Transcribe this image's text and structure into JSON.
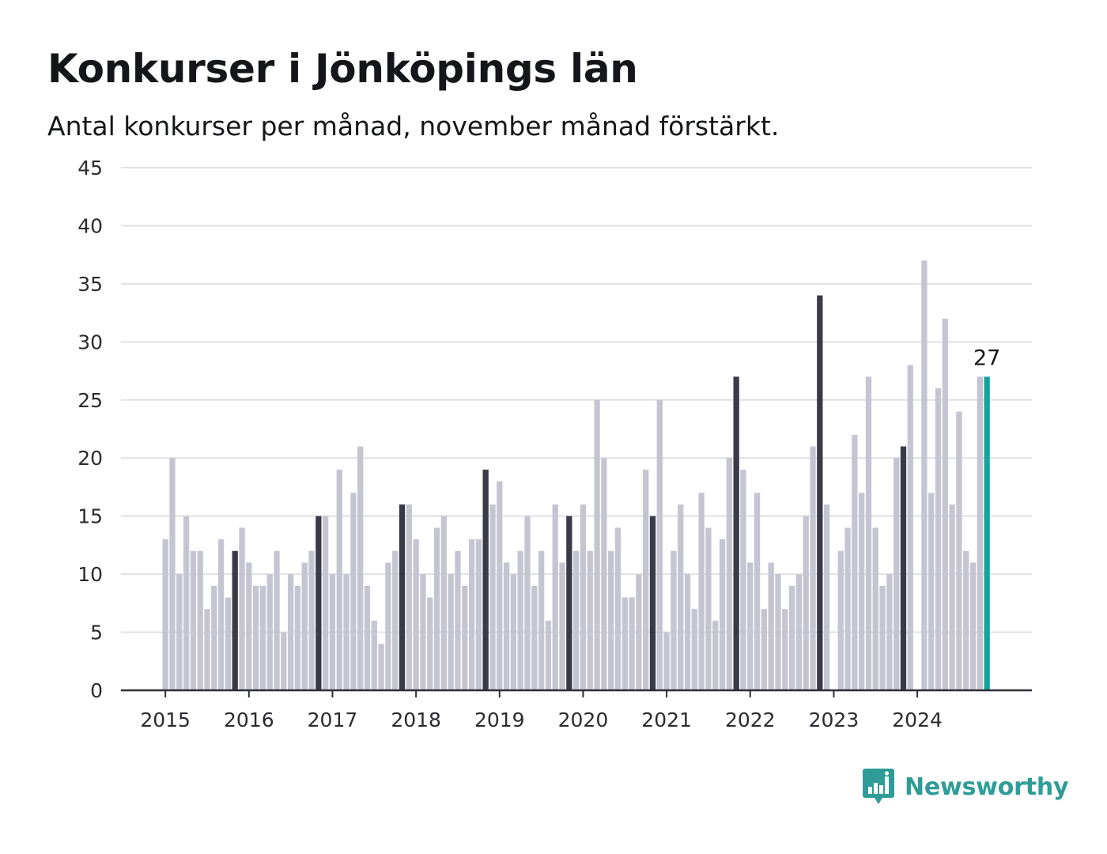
{
  "title": "Konkurser i Jönköpings län",
  "subtitle": "Antal konkurser per månad, november månad förstärkt.",
  "brand": {
    "name": "Newsworthy",
    "icon": "newsworthy-logo-icon"
  },
  "colors": {
    "bar_default": "#c5c5d2",
    "bar_highlight_november": "#3a3a48",
    "bar_latest": "#16a39b",
    "gridline": "#e0e0e5",
    "baseline": "#2e2e38",
    "brand": "#2f9c97"
  },
  "chart_data": {
    "type": "bar",
    "title": "Konkurser i Jönköpings län",
    "subtitle": "Antal konkurser per månad, november månad förstärkt.",
    "xlabel": "",
    "ylabel": "",
    "ylim": [
      0,
      45
    ],
    "yticks": [
      0,
      5,
      10,
      15,
      20,
      25,
      30,
      35,
      40,
      45
    ],
    "xtick_labels": [
      "2015",
      "2016",
      "2017",
      "2018",
      "2019",
      "2020",
      "2021",
      "2022",
      "2023",
      "2024"
    ],
    "grid": true,
    "legend": "none",
    "start": "2015-01",
    "end": "2024-11",
    "highlight_month": 11,
    "latest_label": "27",
    "values": [
      13,
      20,
      10,
      15,
      12,
      12,
      7,
      9,
      13,
      8,
      12,
      14,
      11,
      9,
      9,
      10,
      12,
      5,
      10,
      9,
      11,
      12,
      15,
      15,
      10,
      19,
      10,
      17,
      21,
      9,
      6,
      4,
      11,
      12,
      16,
      16,
      13,
      10,
      8,
      14,
      15,
      10,
      12,
      9,
      13,
      13,
      19,
      16,
      18,
      11,
      10,
      12,
      15,
      9,
      12,
      6,
      16,
      11,
      15,
      12,
      16,
      12,
      25,
      20,
      12,
      14,
      8,
      8,
      10,
      19,
      15,
      25,
      5,
      12,
      16,
      10,
      7,
      17,
      14,
      6,
      13,
      20,
      27,
      19,
      11,
      17,
      7,
      11,
      10,
      7,
      9,
      10,
      15,
      21,
      34,
      16,
      0,
      12,
      14,
      22,
      17,
      27,
      14,
      9,
      10,
      20,
      21,
      28,
      0,
      37,
      17,
      26,
      32,
      16,
      24,
      12,
      11,
      27,
      27
    ]
  }
}
